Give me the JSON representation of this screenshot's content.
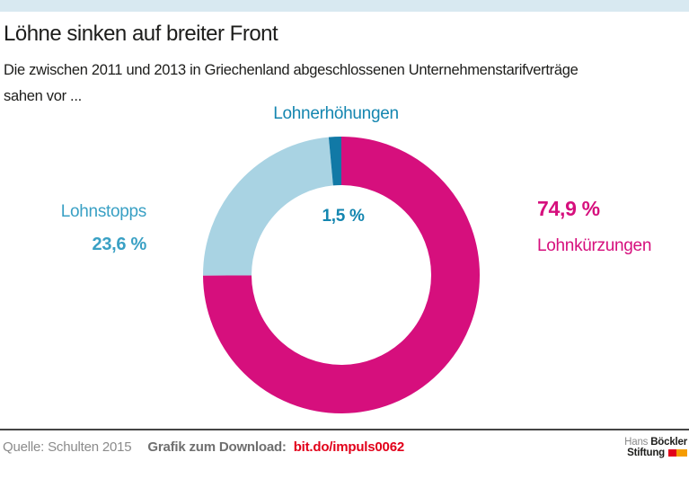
{
  "header": {
    "title": "Löhne sinken auf breiter Front",
    "subtitle_line1": "Die zwischen 2011 und 2013 in Griechenland abgeschlossenen Unternehmenstarifverträge",
    "subtitle_line2": "sahen vor ..."
  },
  "chart_data": {
    "type": "pie",
    "subtype": "donut",
    "title": "Löhne sinken auf breiter Front",
    "subtitle": "Die zwischen 2011 und 2013 in Griechenland abgeschlossenen Unternehmenstarifverträge sahen vor ...",
    "unit": "%",
    "start_angle_deg": 0,
    "direction": "clockwise",
    "segments": [
      {
        "label": "Lohnkürzungen",
        "value": 74.9,
        "display": "74,9 %",
        "color": "#d60f7d",
        "label_color": "#d60f7d"
      },
      {
        "label": "Lohnstopps",
        "value": 23.6,
        "display": "23,6 %",
        "color": "#a9d3e3",
        "label_color": "#39a0c4"
      },
      {
        "label": "Lohnerhöhungen",
        "value": 1.5,
        "display": "1,5 %",
        "color": "#1179a6",
        "label_color": "#1486b0"
      }
    ]
  },
  "footer": {
    "source": "Quelle: Schulten 2015",
    "download_label": "Grafik zum Download:",
    "download_link": "bit.do/impuls0062",
    "link_color": "#e2001a"
  },
  "logo": {
    "line1_regular": "Hans",
    "line1_bold": "Böckler",
    "line2_bold": "Stiftung",
    "mark_colors": [
      "#e2001a",
      "#f59c00"
    ]
  },
  "colors": {
    "topbar": "#d8e9f1",
    "divider": "#454545",
    "text": "#1d1d1b"
  }
}
